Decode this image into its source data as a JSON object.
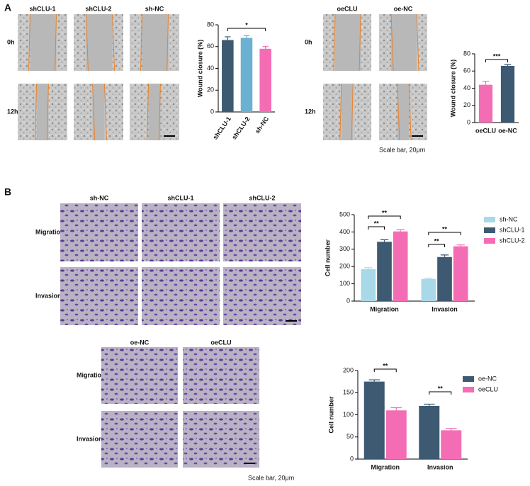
{
  "panel_labels": [
    "A",
    "B"
  ],
  "images": [
    {
      "columns": [
        "shCLU-1",
        "shCLU-2",
        "sh-NC"
      ],
      "rows": [
        "0h",
        "12h"
      ]
    },
    {
      "columns": [
        "oeCLU",
        "oe-NC"
      ],
      "rows": [
        "0h",
        "12h"
      ],
      "note": "Scale bar, 20μm"
    },
    {
      "columns": [
        "sh-NC",
        "shCLU-1",
        "shCLU-2"
      ],
      "rows": [
        "Migration",
        "Invasion"
      ]
    },
    {
      "columns": [
        "oe-NC",
        "oeCLU"
      ],
      "rows": [
        "Migration",
        "Invasion"
      ],
      "note": "Scale bar, 20μm"
    }
  ],
  "chart_data": [
    {
      "type": "bar",
      "y_label": "Wound closure (%)",
      "categories": [
        "shCLU-1",
        "shCLU-2",
        "sh-NC"
      ],
      "values": [
        66,
        68,
        58
      ],
      "errors": [
        3,
        2,
        2
      ],
      "colors": [
        "#3e5a72",
        "#6cb0d2",
        "#f46db4"
      ],
      "ylim": [
        0,
        80
      ],
      "yticks": [
        0,
        20,
        40,
        60,
        80
      ],
      "annotations": [
        "*"
      ]
    },
    {
      "type": "bar",
      "y_label": "Wound closure (%)",
      "categories": [
        "oeCLU",
        "oe-NC"
      ],
      "values": [
        44,
        66
      ],
      "errors": [
        4,
        1.5
      ],
      "colors": [
        "#f46db4",
        "#3e5a72"
      ],
      "ylim": [
        0,
        80
      ],
      "yticks": [
        0,
        20,
        40,
        60,
        80
      ],
      "annotations": [
        "***"
      ]
    },
    {
      "type": "bar",
      "y_label": "Cell number",
      "categories": [
        "Migration",
        "Invasion"
      ],
      "series": [
        {
          "name": "sh-NC",
          "color": "#a9d8e8",
          "values": [
            185,
            128
          ],
          "errors": [
            8,
            5
          ]
        },
        {
          "name": "shCLU-1",
          "color": "#3e5a72",
          "values": [
            343,
            255
          ],
          "errors": [
            12,
            12
          ]
        },
        {
          "name": "shCLU-2",
          "color": "#f46db4",
          "values": [
            403,
            317
          ],
          "errors": [
            10,
            8
          ]
        }
      ],
      "ylim": [
        0,
        500
      ],
      "yticks": [
        0,
        100,
        200,
        300,
        400,
        500
      ],
      "legend": "right",
      "annotations": [
        "**",
        "**",
        "**",
        "**"
      ]
    },
    {
      "type": "bar",
      "y_label": "Cell number",
      "categories": [
        "Migration",
        "Invasion"
      ],
      "series": [
        {
          "name": "oe-NC",
          "color": "#3e5a72",
          "values": [
            175,
            120
          ],
          "errors": [
            4,
            4
          ]
        },
        {
          "name": "oeCLU",
          "color": "#f46db4",
          "values": [
            110,
            65
          ],
          "errors": [
            6,
            4
          ]
        }
      ],
      "ylim": [
        0,
        200
      ],
      "yticks": [
        0,
        50,
        100,
        150,
        200
      ],
      "legend": "right",
      "annotations": [
        "**",
        "**"
      ]
    }
  ]
}
